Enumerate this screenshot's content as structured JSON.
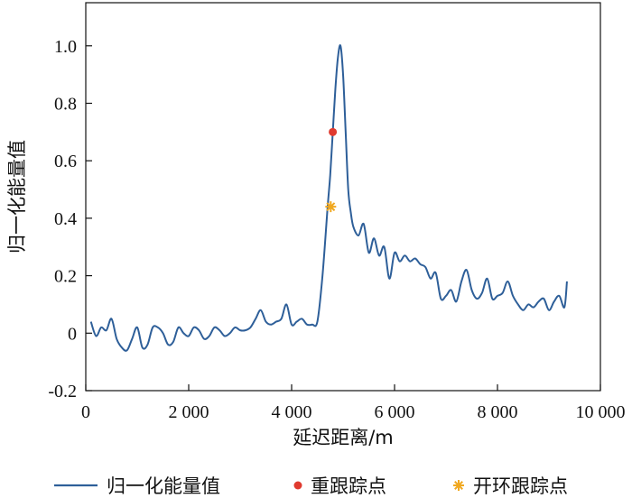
{
  "chart_data": {
    "type": "line",
    "xlabel": "延迟距离/m",
    "ylabel": "归一化能量值",
    "xlim": [
      0,
      10000
    ],
    "ylim": [
      -0.2,
      1.15
    ],
    "x_ticks": [
      0,
      2000,
      4000,
      6000,
      8000,
      10000
    ],
    "x_tick_labels": [
      "0",
      "2 000",
      "4 000",
      "6 000",
      "8 000",
      "10 000"
    ],
    "y_ticks": [
      -0.2,
      0,
      0.2,
      0.4,
      0.6,
      0.8,
      1.0
    ],
    "y_tick_labels": [
      "-0.2",
      "0",
      "0.2",
      "0.4",
      "0.6",
      "0.8",
      "1.0"
    ],
    "grid": false,
    "legend_position": "bottom",
    "legend": [
      "归一化能量值",
      "重跟踪点",
      "开环跟踪点"
    ],
    "series": [
      {
        "name": "归一化能量值",
        "color": "#2e5f99",
        "x": [
          100,
          200,
          300,
          400,
          500,
          600,
          700,
          800,
          900,
          1000,
          1100,
          1200,
          1300,
          1400,
          1500,
          1600,
          1700,
          1800,
          1900,
          2000,
          2100,
          2200,
          2300,
          2400,
          2500,
          2600,
          2700,
          2800,
          2900,
          3000,
          3100,
          3200,
          3300,
          3400,
          3500,
          3600,
          3700,
          3800,
          3900,
          4000,
          4100,
          4200,
          4300,
          4400,
          4500,
          4600,
          4700,
          4750,
          4800,
          4850,
          4900,
          4950,
          5000,
          5050,
          5100,
          5150,
          5200,
          5300,
          5400,
          5500,
          5600,
          5700,
          5800,
          5900,
          6000,
          6100,
          6200,
          6300,
          6400,
          6500,
          6600,
          6700,
          6800,
          6900,
          7000,
          7100,
          7200,
          7300,
          7400,
          7500,
          7600,
          7700,
          7800,
          7900,
          8000,
          8100,
          8200,
          8300,
          8400,
          8500,
          8600,
          8700,
          8800,
          8900,
          9000,
          9100,
          9200,
          9300,
          9350
        ],
        "values": [
          0.04,
          -0.01,
          0.02,
          0.01,
          0.05,
          -0.02,
          -0.05,
          -0.06,
          -0.02,
          0.02,
          -0.05,
          -0.04,
          0.02,
          0.02,
          0.0,
          -0.04,
          -0.03,
          0.02,
          0.0,
          -0.01,
          0.02,
          0.01,
          -0.02,
          -0.01,
          0.02,
          0.01,
          -0.01,
          0.0,
          0.02,
          0.01,
          0.01,
          0.02,
          0.05,
          0.08,
          0.04,
          0.03,
          0.04,
          0.05,
          0.1,
          0.03,
          0.04,
          0.05,
          0.03,
          0.03,
          0.04,
          0.2,
          0.44,
          0.55,
          0.7,
          0.85,
          0.96,
          1.0,
          0.9,
          0.7,
          0.5,
          0.42,
          0.37,
          0.34,
          0.38,
          0.28,
          0.33,
          0.27,
          0.3,
          0.19,
          0.28,
          0.25,
          0.27,
          0.25,
          0.26,
          0.24,
          0.23,
          0.19,
          0.21,
          0.12,
          0.13,
          0.15,
          0.11,
          0.18,
          0.22,
          0.15,
          0.12,
          0.14,
          0.19,
          0.12,
          0.13,
          0.14,
          0.18,
          0.13,
          0.1,
          0.08,
          0.1,
          0.09,
          0.11,
          0.12,
          0.08,
          0.11,
          0.13,
          0.09,
          0.18
        ]
      },
      {
        "name": "重跟踪点",
        "color": "#e03a2f",
        "marker": "circle",
        "x": [
          4800
        ],
        "values": [
          0.7
        ]
      },
      {
        "name": "开环跟踪点",
        "color": "#f0a820",
        "marker": "star",
        "x": [
          4760
        ],
        "values": [
          0.44
        ]
      }
    ]
  }
}
